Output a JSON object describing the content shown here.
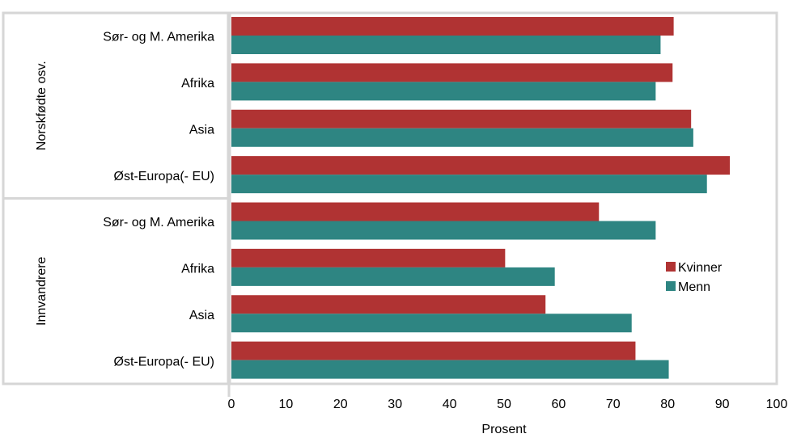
{
  "chart_data": {
    "type": "bar",
    "orientation": "horizontal",
    "xlabel": "Prosent",
    "xlim": [
      0,
      100
    ],
    "xticks": [
      0,
      10,
      20,
      30,
      40,
      50,
      60,
      70,
      80,
      90,
      100
    ],
    "grid": false,
    "legend_position": "right",
    "groups": [
      {
        "name": "Norskfødte osv.",
        "categories": [
          "Sør- og M. Amerika",
          "Afrika",
          "Asia",
          "Øst-Europa(- EU)"
        ]
      },
      {
        "name": "Innvandrere",
        "categories": [
          "Sør- og M. Amerika",
          "Afrika",
          "Asia",
          "Øst-Europa(- EU)"
        ]
      }
    ],
    "series": [
      {
        "name": "Kvinner",
        "color": "#b03333",
        "values": [
          81.1,
          80.9,
          84.3,
          91.4,
          67.4,
          50.2,
          57.6,
          74.1
        ]
      },
      {
        "name": "Menn",
        "color": "#2e8582",
        "values": [
          78.7,
          77.8,
          84.7,
          87.2,
          77.8,
          59.3,
          73.4,
          80.2
        ]
      }
    ]
  }
}
